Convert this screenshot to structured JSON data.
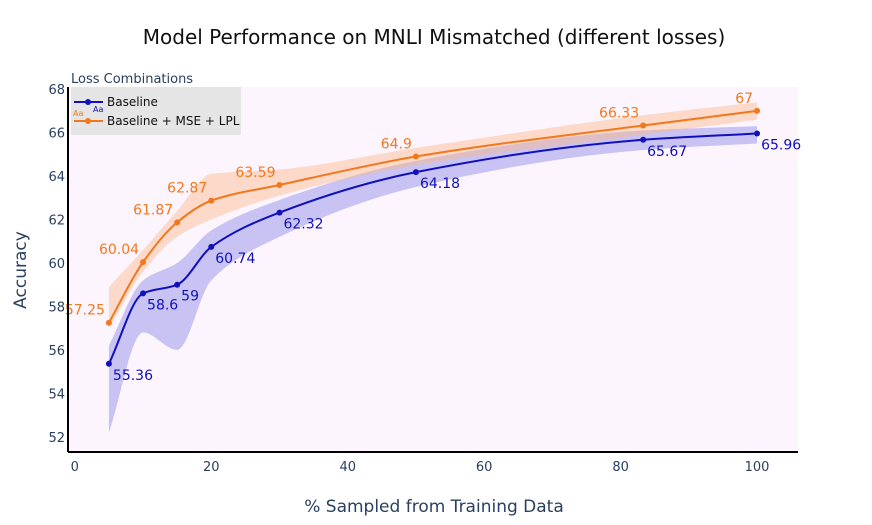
{
  "chart_data": {
    "type": "line",
    "title": "Model Performance on MNLI Mismatched (different losses)",
    "xlabel": "% Sampled from Training Data",
    "ylabel": "Accuracy",
    "xlim": [
      -1,
      106
    ],
    "ylim": [
      51.3,
      68.1
    ],
    "xticks": [
      0,
      20,
      40,
      60,
      80,
      100
    ],
    "yticks": [
      52,
      54,
      56,
      58,
      60,
      62,
      64,
      66,
      68
    ],
    "legend": {
      "title": "Loss Combinations",
      "position": "top-left",
      "sample_text": "Aa"
    },
    "series": [
      {
        "name": "Baseline",
        "color": "#1111bb",
        "band_color": "#6666e0",
        "x": [
          5,
          10,
          15,
          20,
          30,
          50,
          83.3,
          100
        ],
        "values": [
          55.36,
          58.6,
          59,
          60.74,
          62.32,
          64.18,
          65.67,
          65.96
        ],
        "labels": [
          "55.36",
          "58.6",
          "59",
          "60.74",
          "62.32",
          "64.18",
          "65.67",
          "65.96"
        ],
        "band_lower": [
          52.2,
          56.8,
          56.0,
          59.2,
          61.2,
          63.5,
          65.2,
          65.5
        ],
        "band_upper": [
          56.2,
          59.2,
          60.0,
          61.5,
          62.9,
          64.7,
          66.1,
          66.3
        ]
      },
      {
        "name": "Baseline + MSE + LPL",
        "color": "#f2781e",
        "band_color": "#fbb98a",
        "x": [
          5,
          10,
          15,
          20,
          30,
          50,
          83.3,
          100
        ],
        "values": [
          57.25,
          60.04,
          61.87,
          62.87,
          63.59,
          64.9,
          66.33,
          67
        ],
        "labels": [
          "57.25",
          "60.04",
          "61.87",
          "62.87",
          "63.59",
          "64.9",
          "66.33",
          "67"
        ],
        "band_lower": [
          57.0,
          59.6,
          61.2,
          62.0,
          63.1,
          64.5,
          65.9,
          66.6
        ],
        "band_upper": [
          58.9,
          60.6,
          62.4,
          64.1,
          64.3,
          65.3,
          66.8,
          67.4
        ]
      }
    ]
  }
}
